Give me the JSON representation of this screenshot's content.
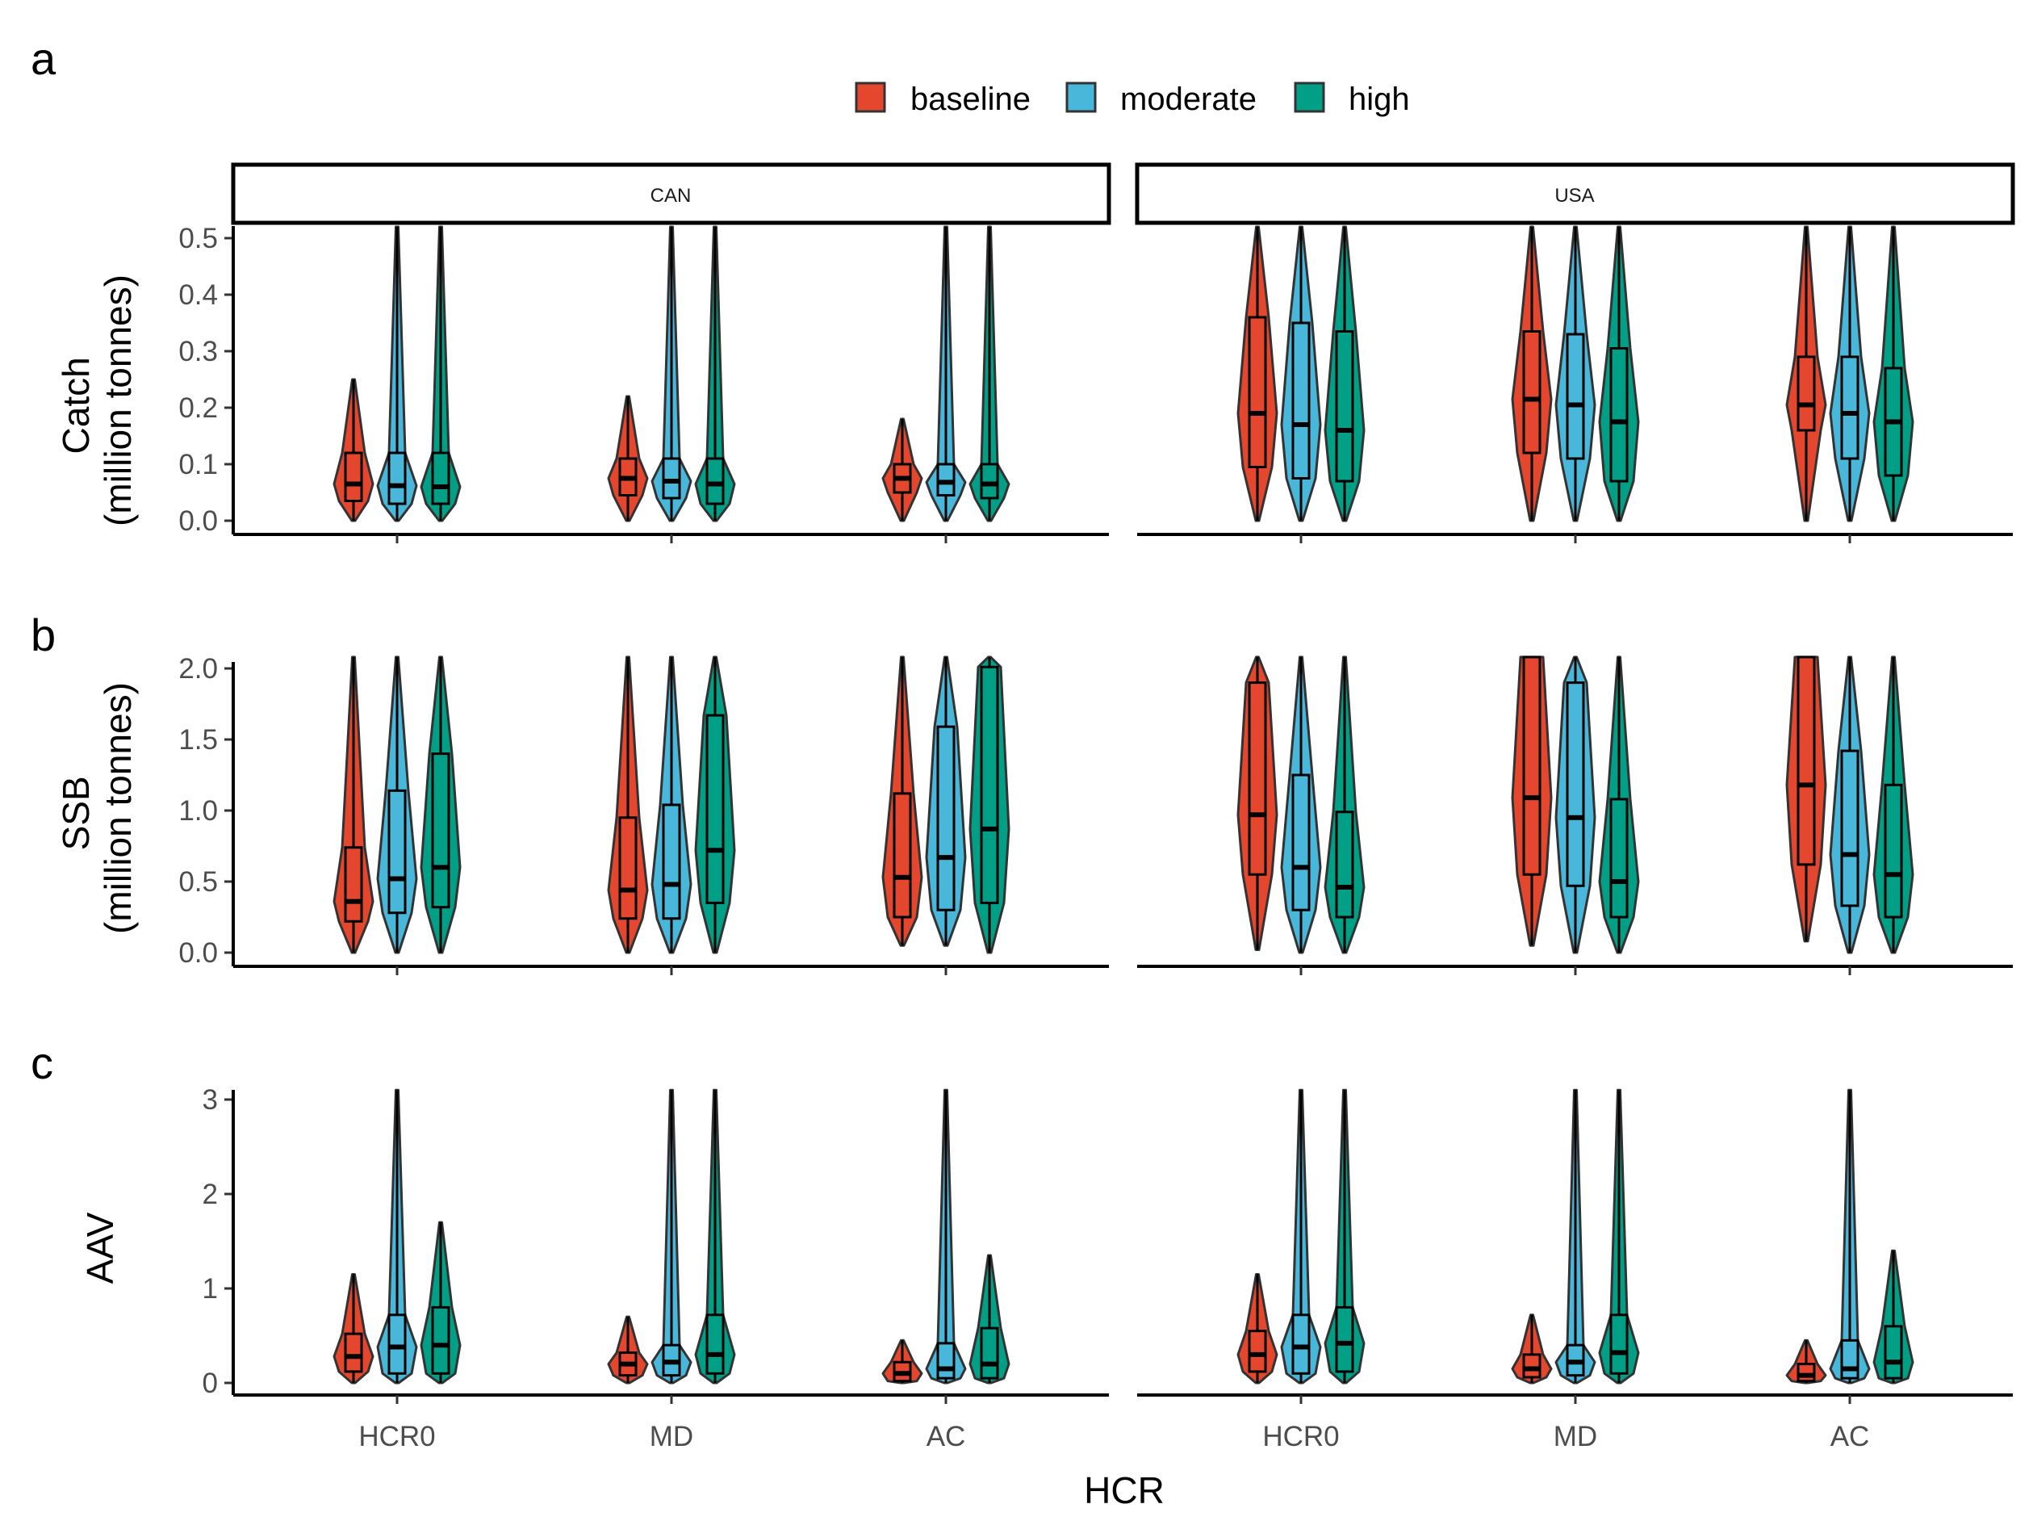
{
  "figure": {
    "panel_labels": [
      "a",
      "b",
      "c"
    ],
    "x_axis_title": "HCR",
    "facets": [
      "CAN",
      "USA"
    ],
    "categories": [
      "HCR0",
      "MD",
      "AC"
    ],
    "legend": [
      {
        "name": "baseline",
        "color": "#E5462E"
      },
      {
        "name": "moderate",
        "color": "#48B7D9"
      },
      {
        "name": "high",
        "color": "#009F86"
      }
    ]
  },
  "chart_data": [
    {
      "type": "violin",
      "panel": "a",
      "ylabel_lines": [
        "Catch",
        "(million tonnes)"
      ],
      "ylim": [
        0,
        0.52
      ],
      "yticks": [
        0,
        0.1,
        0.2,
        0.3,
        0.4,
        0.5
      ],
      "tick_labels": [
        "0.0",
        "0.1",
        "0.2",
        "0.3",
        "0.4",
        "0.5"
      ],
      "summary_stats": [
        "median",
        "q1",
        "q3",
        "whisker_low",
        "whisker_high"
      ],
      "facets": {
        "CAN": {
          "HCR0": {
            "baseline": [
              0.065,
              0.035,
              0.12,
              0,
              0.25
            ],
            "moderate": [
              0.062,
              0.03,
              0.12,
              0,
              0.52
            ],
            "high": [
              0.06,
              0.03,
              0.12,
              0,
              0.52
            ]
          },
          "MD": {
            "baseline": [
              0.075,
              0.045,
              0.11,
              0,
              0.22
            ],
            "moderate": [
              0.07,
              0.04,
              0.11,
              0,
              0.52
            ],
            "high": [
              0.065,
              0.03,
              0.11,
              0,
              0.52
            ]
          },
          "AC": {
            "baseline": [
              0.075,
              0.05,
              0.1,
              0,
              0.18
            ],
            "moderate": [
              0.068,
              0.045,
              0.1,
              0,
              0.52
            ],
            "high": [
              0.065,
              0.04,
              0.1,
              0,
              0.52
            ]
          }
        },
        "USA": {
          "HCR0": {
            "baseline": [
              0.19,
              0.095,
              0.36,
              0,
              0.52
            ],
            "moderate": [
              0.17,
              0.075,
              0.35,
              0,
              0.52
            ],
            "high": [
              0.16,
              0.07,
              0.335,
              0,
              0.52
            ]
          },
          "MD": {
            "baseline": [
              0.215,
              0.12,
              0.335,
              0,
              0.52
            ],
            "moderate": [
              0.205,
              0.11,
              0.33,
              0,
              0.52
            ],
            "high": [
              0.175,
              0.07,
              0.305,
              0,
              0.52
            ]
          },
          "AC": {
            "baseline": [
              0.205,
              0.16,
              0.29,
              0,
              0.52
            ],
            "moderate": [
              0.19,
              0.11,
              0.29,
              0,
              0.52
            ],
            "high": [
              0.175,
              0.08,
              0.27,
              0,
              0.52
            ]
          }
        }
      }
    },
    {
      "type": "violin",
      "panel": "b",
      "ylabel_lines": [
        "SSB",
        "(million tonnes)"
      ],
      "ylim": [
        0,
        2.08
      ],
      "yticks": [
        0,
        0.5,
        1,
        1.5,
        2
      ],
      "tick_labels": [
        "0.0",
        "0.5",
        "1.0",
        "1.5",
        "2.0"
      ],
      "summary_stats": [
        "median",
        "q1",
        "q3",
        "whisker_low",
        "whisker_high"
      ],
      "facets": {
        "CAN": {
          "HCR0": {
            "baseline": [
              0.36,
              0.22,
              0.74,
              0,
              2.08
            ],
            "moderate": [
              0.52,
              0.28,
              1.14,
              0,
              2.08
            ],
            "high": [
              0.6,
              0.32,
              1.4,
              0,
              2.08
            ]
          },
          "MD": {
            "baseline": [
              0.44,
              0.24,
              0.95,
              0,
              2.08
            ],
            "moderate": [
              0.48,
              0.24,
              1.04,
              0,
              2.08
            ],
            "high": [
              0.72,
              0.35,
              1.67,
              0,
              2.08
            ]
          },
          "AC": {
            "baseline": [
              0.53,
              0.25,
              1.12,
              0.05,
              2.08
            ],
            "moderate": [
              0.67,
              0.3,
              1.59,
              0.05,
              2.08
            ],
            "high": [
              0.87,
              0.35,
              2.01,
              0,
              2.08
            ]
          }
        },
        "USA": {
          "HCR0": {
            "baseline": [
              0.97,
              0.55,
              1.9,
              0.02,
              2.08
            ],
            "moderate": [
              0.6,
              0.3,
              1.25,
              0,
              2.08
            ],
            "high": [
              0.46,
              0.25,
              0.99,
              0,
              2.08
            ]
          },
          "MD": {
            "baseline": [
              1.09,
              0.55,
              2.08,
              0.05,
              2.08
            ],
            "moderate": [
              0.95,
              0.47,
              1.9,
              0,
              2.08
            ],
            "high": [
              0.5,
              0.25,
              1.08,
              0,
              2.08
            ]
          },
          "AC": {
            "baseline": [
              1.18,
              0.62,
              2.08,
              0.08,
              2.08
            ],
            "moderate": [
              0.69,
              0.33,
              1.42,
              0,
              2.08
            ],
            "high": [
              0.55,
              0.25,
              1.18,
              0,
              2.08
            ]
          }
        }
      }
    },
    {
      "type": "violin",
      "panel": "c",
      "ylabel_lines": [
        "AAV"
      ],
      "ylim": [
        0,
        3.1
      ],
      "yticks": [
        0,
        1,
        2,
        3
      ],
      "tick_labels": [
        "0",
        "1",
        "2",
        "3"
      ],
      "summary_stats": [
        "median",
        "q1",
        "q3",
        "whisker_low",
        "whisker_high"
      ],
      "facets": {
        "CAN": {
          "HCR0": {
            "baseline": [
              0.28,
              0.12,
              0.52,
              0,
              1.15
            ],
            "moderate": [
              0.38,
              0.1,
              0.72,
              0,
              3.1
            ],
            "high": [
              0.4,
              0.1,
              0.8,
              0,
              1.7
            ]
          },
          "MD": {
            "baseline": [
              0.2,
              0.08,
              0.32,
              0,
              0.7
            ],
            "moderate": [
              0.22,
              0.08,
              0.4,
              0,
              3.1
            ],
            "high": [
              0.3,
              0.1,
              0.72,
              0,
              3.1
            ]
          },
          "AC": {
            "baseline": [
              0.1,
              0.02,
              0.22,
              0,
              0.45
            ],
            "moderate": [
              0.15,
              0.05,
              0.42,
              0,
              3.1
            ],
            "high": [
              0.2,
              0.05,
              0.58,
              0,
              1.35
            ]
          }
        },
        "USA": {
          "HCR0": {
            "baseline": [
              0.3,
              0.12,
              0.55,
              0,
              1.15
            ],
            "moderate": [
              0.38,
              0.1,
              0.72,
              0,
              3.1
            ],
            "high": [
              0.42,
              0.12,
              0.8,
              0,
              3.1
            ]
          },
          "MD": {
            "baseline": [
              0.15,
              0.06,
              0.3,
              0,
              0.72
            ],
            "moderate": [
              0.22,
              0.08,
              0.4,
              0,
              3.1
            ],
            "high": [
              0.32,
              0.1,
              0.72,
              0,
              3.1
            ]
          },
          "AC": {
            "baseline": [
              0.08,
              0.02,
              0.2,
              0,
              0.45
            ],
            "moderate": [
              0.15,
              0.05,
              0.45,
              0,
              3.1
            ],
            "high": [
              0.22,
              0.05,
              0.6,
              0,
              1.4
            ]
          }
        }
      }
    }
  ]
}
